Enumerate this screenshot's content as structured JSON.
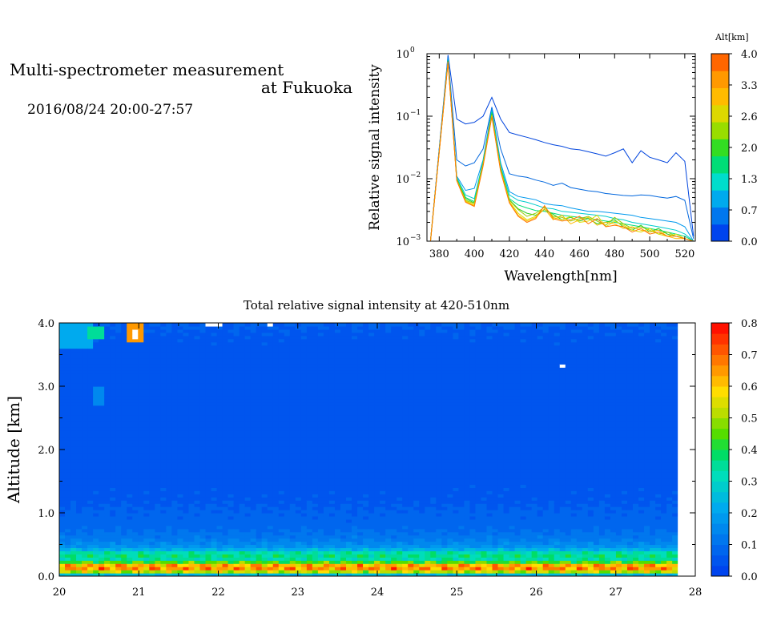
{
  "header": {
    "title_line1": "Multi-spectrometer measurement",
    "title_line2": "at Fukuoka",
    "date_range": "2016/08/24 20:00-27:57"
  },
  "chart_data": [
    {
      "type": "line",
      "xlabel": "Wavelength[nm]",
      "ylabel": "Relative signal intensity",
      "xlim": [
        373,
        526
      ],
      "ylim": [
        0.001,
        1
      ],
      "y_scale": "log",
      "x_ticks": [
        380,
        400,
        420,
        440,
        460,
        480,
        500,
        520
      ],
      "y_ticks": [
        {
          "value": 1,
          "base": "10",
          "exp": "0"
        },
        {
          "value": 0.1,
          "base": "10",
          "exp": "−1"
        },
        {
          "value": 0.01,
          "base": "10",
          "exp": "−2"
        },
        {
          "value": 0.001,
          "base": "10",
          "exp": "−3"
        }
      ],
      "x": [
        375,
        385,
        390,
        395,
        400,
        405,
        410,
        415,
        420,
        425,
        430,
        435,
        440,
        445,
        450,
        455,
        460,
        465,
        470,
        475,
        480,
        485,
        490,
        495,
        500,
        505,
        510,
        515,
        520,
        525
      ],
      "colorbar": {
        "label": "Alt[km]",
        "ticks": [
          "4.0",
          "3.3",
          "2.6",
          "2.0",
          "1.3",
          "0.7",
          "0.0"
        ],
        "colors": [
          "#0044ee",
          "#0077ee",
          "#00aaee",
          "#00ddcc",
          "#00dd77",
          "#33dd22",
          "#99dd00",
          "#ddd800",
          "#ffbb00",
          "#ff9900",
          "#ff6600"
        ]
      },
      "series": [
        {
          "alt": 0.0,
          "color": "#0044dd",
          "values": [
            0.001,
            0.95,
            0.09,
            0.075,
            0.08,
            0.1,
            0.2,
            0.09,
            0.055,
            0.05,
            0.046,
            0.042,
            0.038,
            0.035,
            0.033,
            0.03,
            0.029,
            0.027,
            0.025,
            0.023,
            0.026,
            0.03,
            0.018,
            0.028,
            0.022,
            0.02,
            0.018,
            0.026,
            0.019,
            0.0012
          ]
        },
        {
          "alt": 0.3,
          "color": "#0066dd",
          "values": [
            0.001,
            0.9,
            0.02,
            0.016,
            0.018,
            0.03,
            0.14,
            0.03,
            0.012,
            0.011,
            0.0105,
            0.0095,
            0.0088,
            0.0078,
            0.0085,
            0.0072,
            0.0068,
            0.0064,
            0.0062,
            0.0058,
            0.0056,
            0.0054,
            0.0053,
            0.0055,
            0.0054,
            0.0051,
            0.0049,
            0.0052,
            0.0045,
            0.0011
          ]
        },
        {
          "alt": 0.7,
          "color": "#0099ee",
          "values": [
            0.001,
            0.85,
            0.011,
            0.0065,
            0.007,
            0.02,
            0.13,
            0.018,
            0.0062,
            0.0052,
            0.0049,
            0.0046,
            0.004,
            0.0038,
            0.0037,
            0.0034,
            0.0032,
            0.003,
            0.003,
            0.0029,
            0.0028,
            0.0027,
            0.0026,
            0.0024,
            0.0023,
            0.0022,
            0.0021,
            0.002,
            0.0017,
            0.001
          ]
        },
        {
          "alt": 1.3,
          "color": "#00cccc",
          "values": [
            0.001,
            0.8,
            0.0105,
            0.0055,
            0.0048,
            0.019,
            0.12,
            0.016,
            0.0055,
            0.0045,
            0.0042,
            0.0038,
            0.0034,
            0.0033,
            0.003,
            0.0029,
            0.0028,
            0.0027,
            0.0026,
            0.0025,
            0.0023,
            0.0022,
            0.002,
            0.0019,
            0.0018,
            0.0017,
            0.0016,
            0.0015,
            0.0013,
            0.001
          ]
        },
        {
          "alt": 2.0,
          "color": "#00dd77",
          "values": [
            0.001,
            0.78,
            0.01,
            0.005,
            0.0043,
            0.018,
            0.115,
            0.015,
            0.0048,
            0.0038,
            0.0034,
            0.0031,
            0.003,
            0.0028,
            0.0026,
            0.0025,
            0.0024,
            0.0023,
            0.0022,
            0.0021,
            0.002,
            0.0019,
            0.0018,
            0.0017,
            0.0016,
            0.0015,
            0.0014,
            0.0013,
            0.0012,
            0.001
          ]
        },
        {
          "alt": 2.3,
          "color": "#33cc22",
          "values": [
            0.001,
            0.76,
            0.0098,
            0.0048,
            0.0041,
            0.0175,
            0.11,
            0.0145,
            0.0046,
            0.0033,
            0.0028,
            0.0026,
            0.0032,
            0.0027,
            0.0022,
            0.0024,
            0.0021,
            0.0023,
            0.0019,
            0.002,
            0.0022,
            0.0017,
            0.0015,
            0.0018,
            0.0014,
            0.0016,
            0.0013,
            0.0012,
            0.0011,
            0.001
          ]
        },
        {
          "alt": 2.6,
          "color": "#99cc00",
          "values": [
            0.001,
            0.75,
            0.0095,
            0.0045,
            0.004,
            0.017,
            0.105,
            0.014,
            0.0045,
            0.0032,
            0.0025,
            0.0028,
            0.0035,
            0.0025,
            0.0024,
            0.0021,
            0.0023,
            0.0025,
            0.0021,
            0.0018,
            0.0024,
            0.0019,
            0.0016,
            0.0017,
            0.0015,
            0.0013,
            0.0014,
            0.0012,
            0.0011,
            0.001
          ]
        },
        {
          "alt": 3.0,
          "color": "#dddd00",
          "values": [
            0.001,
            0.74,
            0.0095,
            0.0044,
            0.0038,
            0.0168,
            0.102,
            0.0138,
            0.0043,
            0.0028,
            0.0022,
            0.0025,
            0.0036,
            0.0024,
            0.0022,
            0.0025,
            0.002,
            0.0021,
            0.0026,
            0.0017,
            0.0021,
            0.0018,
            0.0015,
            0.0014,
            0.0016,
            0.0013,
            0.0012,
            0.0013,
            0.0011,
            0.001
          ]
        },
        {
          "alt": 3.3,
          "color": "#ffbb00",
          "values": [
            0.001,
            0.73,
            0.0094,
            0.0043,
            0.0037,
            0.0165,
            0.1,
            0.0135,
            0.0042,
            0.0026,
            0.0021,
            0.0024,
            0.0033,
            0.0022,
            0.0026,
            0.0019,
            0.0022,
            0.0024,
            0.0018,
            0.002,
            0.0019,
            0.0016,
            0.0017,
            0.0015,
            0.0014,
            0.0015,
            0.0012,
            0.0011,
            0.0011,
            0.001
          ]
        },
        {
          "alt": 4.0,
          "color": "#ff7700",
          "values": [
            0.001,
            0.72,
            0.0093,
            0.0042,
            0.0036,
            0.016,
            0.098,
            0.013,
            0.0041,
            0.0025,
            0.002,
            0.0023,
            0.0037,
            0.0023,
            0.0021,
            0.0022,
            0.0025,
            0.0019,
            0.0023,
            0.0017,
            0.0018,
            0.0017,
            0.0014,
            0.0016,
            0.0013,
            0.0014,
            0.0012,
            0.0012,
            0.0011,
            0.001
          ]
        }
      ]
    },
    {
      "type": "heatmap",
      "title": "Total relative signal intensity at 420-510nm",
      "ylabel": "Altitude [km]",
      "xlim": [
        20,
        28
      ],
      "ylim": [
        0,
        4
      ],
      "data_end": 27.78,
      "x_ticks": [
        "20",
        "21",
        "22",
        "23",
        "24",
        "25",
        "26",
        "27",
        "28"
      ],
      "y_ticks": [
        "0.0",
        "1.0",
        "2.0",
        "3.0",
        "4.0"
      ],
      "colorbar": {
        "ticks": [
          "0.8",
          "0.7",
          "0.6",
          "0.5",
          "0.4",
          "0.3",
          "0.2",
          "0.1",
          "0.0"
        ],
        "range": [
          0,
          0.8
        ],
        "colors": [
          "#0044ee",
          "#0055ee",
          "#0066ee",
          "#0077ee",
          "#0088ee",
          "#0099ee",
          "#00aaee",
          "#00bbdd",
          "#00cccc",
          "#00ddbb",
          "#00dd99",
          "#00dd66",
          "#22dd33",
          "#55dd00",
          "#88dd00",
          "#bbdd00",
          "#dddd00",
          "#ffdd00",
          "#ffbb00",
          "#ff9900",
          "#ff7700",
          "#ff5500",
          "#ff3300",
          "#ff1100"
        ]
      },
      "profile": [
        {
          "alt": 0.0,
          "value": 0.12
        },
        {
          "alt": 0.08,
          "value": 0.55
        },
        {
          "alt": 0.15,
          "value": 0.72
        },
        {
          "alt": 0.22,
          "value": 0.45
        },
        {
          "alt": 0.28,
          "value": 0.32
        },
        {
          "alt": 0.35,
          "value": 0.38
        },
        {
          "alt": 0.45,
          "value": 0.18
        },
        {
          "alt": 0.6,
          "value": 0.12
        },
        {
          "alt": 0.8,
          "value": 0.085
        },
        {
          "alt": 1.2,
          "value": 0.06
        },
        {
          "alt": 2.0,
          "value": 0.05
        },
        {
          "alt": 3.0,
          "value": 0.045
        },
        {
          "alt": 3.8,
          "value": 0.06
        },
        {
          "alt": 4.0,
          "value": 0.07
        }
      ],
      "features": [
        {
          "x": 20.0,
          "x2": 20.45,
          "alt": 3.6,
          "alt2": 4.0,
          "value": 0.2
        },
        {
          "x": 20.35,
          "x2": 20.55,
          "alt": 3.75,
          "alt2": 3.95,
          "value": 0.35
        },
        {
          "x": 20.82,
          "x2": 21.05,
          "alt": 3.68,
          "alt2": 4.0,
          "value": 0.65
        },
        {
          "x": 20.9,
          "x2": 21.0,
          "alt": 3.75,
          "alt2": 3.92,
          "value": 0.85
        },
        {
          "x": 20.45,
          "x2": 20.6,
          "alt": 2.7,
          "alt2": 3.0,
          "value": 0.16
        },
        {
          "x": 21.85,
          "x2": 22.05,
          "alt": 3.93,
          "alt2": 4.0,
          "value": 0.85
        },
        {
          "x": 22.6,
          "x2": 22.72,
          "alt": 3.95,
          "alt2": 4.0,
          "value": 0.85
        },
        {
          "x": 26.3,
          "x2": 26.4,
          "alt": 3.28,
          "alt2": 3.35,
          "value": 0.85
        }
      ]
    }
  ]
}
